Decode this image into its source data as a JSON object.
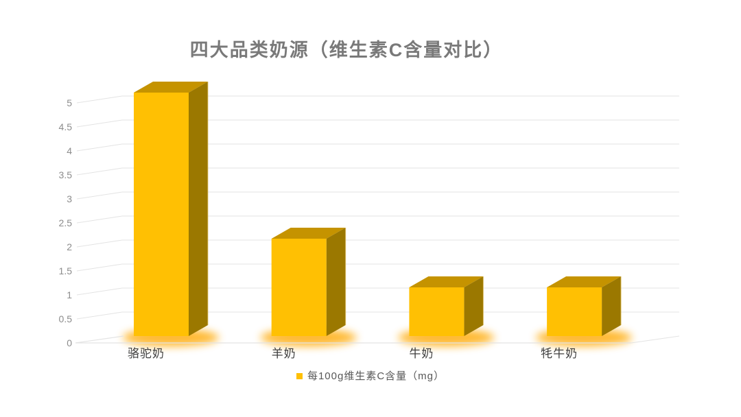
{
  "chart_data": {
    "type": "bar",
    "subtype": "3d-clustered-column",
    "title": "四大品类奶源（维生素C含量对比）",
    "categories": [
      "骆驼奶",
      "羊奶",
      "牛奶",
      "牦牛奶"
    ],
    "series": [
      {
        "name": "每100g维生素C含量（mg）",
        "values": [
          5,
          2,
          1,
          1
        ]
      }
    ],
    "xlabel": "",
    "ylabel": "",
    "ylim": [
      0,
      5
    ],
    "yticks": [
      0,
      0.5,
      1,
      1.5,
      2,
      2.5,
      3,
      3.5,
      4,
      4.5,
      5
    ],
    "grid": true,
    "legend_position": "bottom"
  },
  "colors": {
    "background": "#FFFFFF",
    "bar_front": "#FFC003",
    "bar_top": "#C59300",
    "bar_side": "#9B7800",
    "bar_glow": "#FFA800",
    "bar_edge_highlight": "#DFC16A",
    "gridline": "#E3E3E3",
    "title_text": "#797979",
    "axis_tick_text": "#8C8C8C",
    "category_text": "#3E3E3E",
    "legend_text": "#575757"
  }
}
